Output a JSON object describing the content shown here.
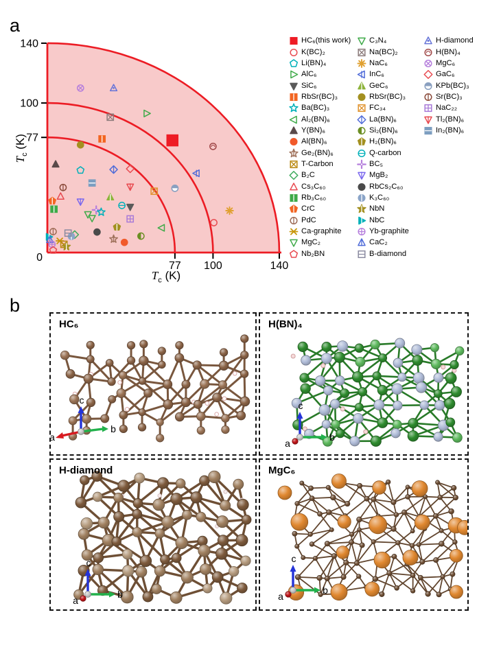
{
  "panel_a": {
    "label": "a",
    "axis": {
      "title_symbol": "T",
      "title_sub": "c",
      "title_unit": " (K)",
      "origin_label": "0"
    },
    "legend": {
      "columns": [
        [
          {
            "label": "HC₆(this work)",
            "shape": "square",
            "color": "#ee1c25",
            "filled": true
          },
          {
            "label": "K(BC)₂",
            "shape": "circle",
            "color": "#e84a50",
            "filled": false
          },
          {
            "label": "Li(BN)₄",
            "shape": "pent",
            "color": "#00b0b9",
            "filled": false
          },
          {
            "label": "AlC₆",
            "shape": "triR",
            "color": "#3faa49",
            "filled": false
          },
          {
            "label": "SiC₆",
            "shape": "triD",
            "color": "#5a5a5a",
            "filled": true
          },
          {
            "label": "RbSr(BC)₃",
            "shape": "square",
            "color": "#f26522",
            "filled": true,
            "deco": "vline"
          },
          {
            "label": "Ba(BC)₃",
            "shape": "star5",
            "color": "#00b0b9",
            "filled": false
          },
          {
            "label": "Al₂(BN)₆",
            "shape": "triL",
            "color": "#3faa49",
            "filled": false
          },
          {
            "label": "Y(BN)₆",
            "shape": "triU",
            "color": "#5a4a4a",
            "filled": true
          },
          {
            "label": "Al(BN)₆",
            "shape": "circle",
            "color": "#f1592a",
            "filled": true
          },
          {
            "label": "Ge₂(BN)₆",
            "shape": "star5",
            "color": "#a0725c",
            "filled": false,
            "deco": "vline"
          },
          {
            "label": "T-Carbon",
            "shape": "square",
            "color": "#b8860b",
            "filled": false,
            "deco": "x"
          },
          {
            "label": "B₂C",
            "shape": "diamond",
            "color": "#3daa5c",
            "filled": false
          },
          {
            "label": "Cs₃C₆₀",
            "shape": "triU",
            "color": "#e84a50",
            "filled": false
          },
          {
            "label": "Rb₃C₆₀",
            "shape": "square",
            "color": "#3faa49",
            "filled": true,
            "deco": "vline"
          },
          {
            "label": "CrC",
            "shape": "pent",
            "color": "#f26522",
            "filled": true,
            "deco": "vline"
          },
          {
            "label": "PdC",
            "shape": "circle",
            "color": "#9c6a54",
            "filled": false,
            "deco": "vline"
          },
          {
            "label": "Ca-graphite",
            "shape": "xstar",
            "color": "#c89608",
            "filled": false
          },
          {
            "label": "MgC₂",
            "shape": "triD",
            "color": "#3faa49",
            "filled": false
          },
          {
            "label": "Nb₂BN",
            "shape": "pent",
            "color": "#e84a50",
            "filled": false
          }
        ],
        [
          {
            "label": "C₃N₄",
            "shape": "triD",
            "color": "#3faa49",
            "filled": false
          },
          {
            "label": "Na(BC)₂",
            "shape": "square",
            "color": "#8a7a7a",
            "filled": false,
            "deco": "x"
          },
          {
            "label": "NaC₆",
            "shape": "star8",
            "color": "#e0a030",
            "filled": false
          },
          {
            "label": "InC₆",
            "shape": "triL",
            "color": "#4f6bd8",
            "filled": false,
            "deco": "vline"
          },
          {
            "label": "GeC₆",
            "shape": "triU",
            "color": "#8db33a",
            "filled": true,
            "deco": "vline"
          },
          {
            "label": "RbSr(BC)₃",
            "shape": "circle",
            "color": "#a39020",
            "filled": true
          },
          {
            "label": "FC₃₄",
            "shape": "square",
            "color": "#e0922c",
            "filled": false,
            "deco": "x"
          },
          {
            "label": "La(BN)₆",
            "shape": "diamond",
            "color": "#4f6bd8",
            "filled": false,
            "deco": "vline"
          },
          {
            "label": "Si₂(BN)₆",
            "shape": "circle",
            "color": "#6b8e23",
            "filled": false,
            "deco": "halfL"
          },
          {
            "label": "H₂(BN)₆",
            "shape": "pent",
            "color": "#a39020",
            "filled": true,
            "deco": "vline"
          },
          {
            "label": "Q-carbon",
            "shape": "circle",
            "color": "#00b0b9",
            "filled": false,
            "deco": "hline"
          },
          {
            "label": "BC₅",
            "shape": "cross",
            "color": "#b57edc",
            "filled": false
          },
          {
            "label": "MgB₂",
            "shape": "triD",
            "color": "#7b68ee",
            "filled": false,
            "deco": "vline"
          },
          {
            "label": "RbCs₂C₆₀",
            "shape": "circle",
            "color": "#4a4a4a",
            "filled": true
          },
          {
            "label": "K₃C₆₀",
            "shape": "circle",
            "color": "#8aa4c8",
            "filled": true,
            "deco": "vline"
          },
          {
            "label": "NbN",
            "shape": "star5",
            "color": "#a39020",
            "filled": true,
            "deco": "vline"
          },
          {
            "label": "NbC",
            "shape": "triR",
            "color": "#00b0b9",
            "filled": true,
            "deco": "vline"
          },
          {
            "label": "Yb-graphite",
            "shape": "circle",
            "color": "#b57edc",
            "filled": false,
            "deco": "plus"
          },
          {
            "label": "CaC₂",
            "shape": "triU",
            "color": "#4f6bd8",
            "filled": false,
            "deco": "vline"
          },
          {
            "label": "B-diamond",
            "shape": "square",
            "color": "#8a8aa0",
            "filled": false,
            "deco": "hline"
          }
        ],
        [
          {
            "label": "H-diamond",
            "shape": "triU",
            "color": "#6674d8",
            "filled": false,
            "deco": "dot"
          },
          {
            "label": "H(BN)₄",
            "shape": "circle",
            "color": "#a04848",
            "filled": false,
            "deco": "curl"
          },
          {
            "label": "MgC₆",
            "shape": "circle",
            "color": "#b57edc",
            "filled": false,
            "deco": "x"
          },
          {
            "label": "GaC₆",
            "shape": "diamond",
            "color": "#e84a50",
            "filled": false
          },
          {
            "label": "KPb(BC)₃",
            "shape": "circle",
            "color": "#8aa0c0",
            "filled": true,
            "deco": "halfB"
          },
          {
            "label": "Sr(BC)₃",
            "shape": "circle",
            "color": "#8a4a3a",
            "filled": false,
            "deco": "vline"
          },
          {
            "label": "NaC₂₂",
            "shape": "square",
            "color": "#a87ad8",
            "filled": false,
            "deco": "plus"
          },
          {
            "label": "Tl₂(BN)₆",
            "shape": "triD",
            "color": "#e84a50",
            "filled": false,
            "deco": "vline"
          },
          {
            "label": "In₂(BN)₆",
            "shape": "square",
            "color": "#7d9ec0",
            "filled": true,
            "deco": "hline"
          }
        ]
      ]
    },
    "colors": {
      "line": "#ec1c24",
      "fill": "#f8caca",
      "tick": "#000000"
    }
  },
  "chart_data": {
    "type": "scatter",
    "title": "",
    "xlabel": "Tc (K)",
    "ylabel": "Tc (K)",
    "xlim": [
      0,
      145
    ],
    "ylim": [
      0,
      145
    ],
    "x_ticks": [
      0,
      77,
      100,
      140
    ],
    "y_ticks": [
      0,
      77,
      100,
      140
    ],
    "arcs": [
      77,
      100,
      140
    ],
    "grid": false,
    "legend_position": "right",
    "points": [
      {
        "name": "HC₆(this work)",
        "x": 75.5,
        "y": 75,
        "shape": "square",
        "color": "#ee1c25",
        "filled": true,
        "size": 8
      },
      {
        "name": "H(BN)₄",
        "x": 100,
        "y": 71,
        "shape": "circle",
        "color": "#a04848",
        "filled": false,
        "deco": "curl"
      },
      {
        "name": "MgC₆",
        "x": 20,
        "y": 110,
        "shape": "circle",
        "color": "#b57edc",
        "filled": false,
        "deco": "x"
      },
      {
        "name": "H-diamond",
        "x": 40,
        "y": 110,
        "shape": "triU",
        "color": "#6674d8",
        "filled": false,
        "deco": "dot"
      },
      {
        "name": "Na(BC)₂",
        "x": 38,
        "y": 90.5,
        "shape": "square",
        "color": "#8a7a7a",
        "filled": false,
        "deco": "x"
      },
      {
        "name": "AlC₆",
        "x": 60,
        "y": 93,
        "shape": "triR",
        "color": "#3faa49",
        "filled": false
      },
      {
        "name": "RbSr(BC)₃",
        "x": 33,
        "y": 76,
        "shape": "square",
        "color": "#f26522",
        "filled": true,
        "deco": "vline"
      },
      {
        "name": "RbSr(BC)₃",
        "x": 20,
        "y": 72,
        "shape": "circle",
        "color": "#a39020",
        "filled": true
      },
      {
        "name": "InC₆",
        "x": 90,
        "y": 53,
        "shape": "triL",
        "color": "#4f6bd8",
        "filled": false,
        "deco": "vline"
      },
      {
        "name": "K(BC)₂",
        "x": 100.5,
        "y": 20,
        "shape": "circle",
        "color": "#e84a50",
        "filled": false
      },
      {
        "name": "NaC₆",
        "x": 110,
        "y": 28,
        "shape": "star8",
        "color": "#e0a030",
        "filled": false
      },
      {
        "name": "KPb(BC)₃",
        "x": 77,
        "y": 43,
        "shape": "circle",
        "color": "#8aa0c0",
        "filled": true,
        "deco": "halfB"
      },
      {
        "name": "FC₃₄",
        "x": 64.5,
        "y": 41,
        "shape": "square",
        "color": "#e0922c",
        "filled": false,
        "deco": "x"
      },
      {
        "name": "Y(BN)₆",
        "x": 5,
        "y": 59,
        "shape": "triU",
        "color": "#5a4a4a",
        "filled": true
      },
      {
        "name": "Li(BN)₄",
        "x": 20,
        "y": 55,
        "shape": "pent",
        "color": "#00b0b9",
        "filled": false
      },
      {
        "name": "La(BN)₆",
        "x": 40,
        "y": 55.5,
        "shape": "diamond",
        "color": "#4f6bd8",
        "filled": false,
        "deco": "vline"
      },
      {
        "name": "GaC₆",
        "x": 50,
        "y": 56,
        "shape": "diamond",
        "color": "#e84a50",
        "filled": false
      },
      {
        "name": "In₂(BN)₆",
        "x": 27,
        "y": 46.5,
        "shape": "square",
        "color": "#7d9ec0",
        "filled": true,
        "deco": "hline"
      },
      {
        "name": "Sr(BC)₃",
        "x": 9.5,
        "y": 43.5,
        "shape": "circle",
        "color": "#8a4a3a",
        "filled": false,
        "deco": "vline"
      },
      {
        "name": "Tl₂(BN)₆",
        "x": 50,
        "y": 44,
        "shape": "triD",
        "color": "#e84a50",
        "filled": false,
        "deco": "vline"
      },
      {
        "name": "Cs₃C₆₀",
        "x": 8,
        "y": 37.5,
        "shape": "triU",
        "color": "#e84a50",
        "filled": false
      },
      {
        "name": "CrC",
        "x": 3,
        "y": 34.5,
        "shape": "pent",
        "color": "#f26522",
        "filled": true,
        "deco": "vline"
      },
      {
        "name": "MgB₂",
        "x": 20,
        "y": 34,
        "shape": "triD",
        "color": "#7b68ee",
        "filled": false,
        "deco": "vline"
      },
      {
        "name": "GeC₆",
        "x": 38,
        "y": 37,
        "shape": "triU",
        "color": "#8db33a",
        "filled": true,
        "deco": "vline"
      },
      {
        "name": "Rb₃C₆₀",
        "x": 4,
        "y": 29,
        "shape": "square",
        "color": "#3faa49",
        "filled": true,
        "deco": "vline"
      },
      {
        "name": "Q-carbon",
        "x": 45,
        "y": 31.5,
        "shape": "circle",
        "color": "#00b0b9",
        "filled": false,
        "deco": "hline"
      },
      {
        "name": "SiC₆",
        "x": 50,
        "y": 30.5,
        "shape": "triD",
        "color": "#5a5a5a",
        "filled": true
      },
      {
        "name": "MgC₂",
        "x": 24.5,
        "y": 25.5,
        "shape": "triD",
        "color": "#3faa49",
        "filled": false
      },
      {
        "name": "C₃N₄",
        "x": 27,
        "y": 23,
        "shape": "triD",
        "color": "#3faa49",
        "filled": false
      },
      {
        "name": "BC₅",
        "x": 29.5,
        "y": 28.5,
        "shape": "cross",
        "color": "#b57edc",
        "filled": false
      },
      {
        "name": "Ba(BC)₃",
        "x": 32.5,
        "y": 27,
        "shape": "star5",
        "color": "#00b0b9",
        "filled": false
      },
      {
        "name": "NaC₂₂",
        "x": 50,
        "y": 22.5,
        "shape": "square",
        "color": "#a87ad8",
        "filled": false,
        "deco": "plus"
      },
      {
        "name": "H₂(BN)₆",
        "x": 42,
        "y": 17,
        "shape": "pent",
        "color": "#a39020",
        "filled": true,
        "deco": "vline"
      },
      {
        "name": "RbCs₂C₆₀",
        "x": 30,
        "y": 13.7,
        "shape": "circle",
        "color": "#4a4a4a",
        "filled": true
      },
      {
        "name": "Al₂(BN)₆",
        "x": 69,
        "y": 16.5,
        "shape": "triL",
        "color": "#3faa49",
        "filled": false
      },
      {
        "name": "Si₂(BN)₆",
        "x": 56.5,
        "y": 11,
        "shape": "circle",
        "color": "#6b8e23",
        "filled": false,
        "deco": "halfL"
      },
      {
        "name": "Ge₂(BN)₆",
        "x": 40,
        "y": 9,
        "shape": "star5",
        "color": "#a0725c",
        "filled": false,
        "deco": "vline"
      },
      {
        "name": "Al(BN)₆",
        "x": 46.5,
        "y": 6.8,
        "shape": "circle",
        "color": "#f1592a",
        "filled": true
      },
      {
        "name": "PdC",
        "x": 3.5,
        "y": 14,
        "shape": "circle",
        "color": "#9c6a54",
        "filled": false,
        "deco": "vline"
      },
      {
        "name": "NbC",
        "x": 1,
        "y": 10.5,
        "shape": "triR",
        "color": "#00b0b9",
        "filled": true,
        "deco": "vline"
      },
      {
        "name": "CaC₂",
        "x": 1.5,
        "y": 8.5,
        "shape": "triU",
        "color": "#4f6bd8",
        "filled": false,
        "deco": "vline"
      },
      {
        "name": "B₂C",
        "x": 16.5,
        "y": 12,
        "shape": "diamond",
        "color": "#3daa5c",
        "filled": false
      },
      {
        "name": "K₃C₆₀",
        "x": 14.5,
        "y": 10.8,
        "shape": "circle",
        "color": "#8aa4c8",
        "filled": true,
        "deco": "vline"
      },
      {
        "name": "B-diamond",
        "x": 12.5,
        "y": 13,
        "shape": "square",
        "color": "#8a8aa0",
        "filled": false,
        "deco": "hline"
      },
      {
        "name": "Ca-graphite",
        "x": 7.5,
        "y": 7.8,
        "shape": "xstar",
        "color": "#c89608",
        "filled": false
      },
      {
        "name": "T-Carbon",
        "x": 10,
        "y": 5.5,
        "shape": "square",
        "color": "#b8860b",
        "filled": false,
        "deco": "x"
      },
      {
        "name": "NbN",
        "x": 11.5,
        "y": 4,
        "shape": "star5",
        "color": "#a39020",
        "filled": true,
        "deco": "vline"
      },
      {
        "name": "Yb-graphite",
        "x": 2.8,
        "y": 5.5,
        "shape": "circle",
        "color": "#b57edc",
        "filled": false,
        "deco": "plus"
      },
      {
        "name": "Nb₂BN",
        "x": 3.5,
        "y": 1.5,
        "shape": "pent",
        "color": "#e84a50",
        "filled": false
      }
    ]
  },
  "panel_b": {
    "label": "b",
    "axis_labels": {
      "a": "a",
      "b": "b",
      "c": "c"
    },
    "boxes": [
      {
        "id": "hc6",
        "title": "HC₆",
        "atom_colors": [
          "#8a6346",
          "#9a7355"
        ]
      },
      {
        "id": "hbn4",
        "title": "H(BN)₄",
        "atom_colors": [
          "#2e8b2e",
          "#5cb85c",
          "#b0bcd8"
        ]
      },
      {
        "id": "h-diamond",
        "title": "H-diamond",
        "atom_colors": [
          "#7d5a3c",
          "#a08060",
          "#b59b7e"
        ]
      },
      {
        "id": "mgc6",
        "title": "MgC₆",
        "atom_colors": [
          "#6f4f35",
          "#e08830"
        ]
      }
    ]
  }
}
